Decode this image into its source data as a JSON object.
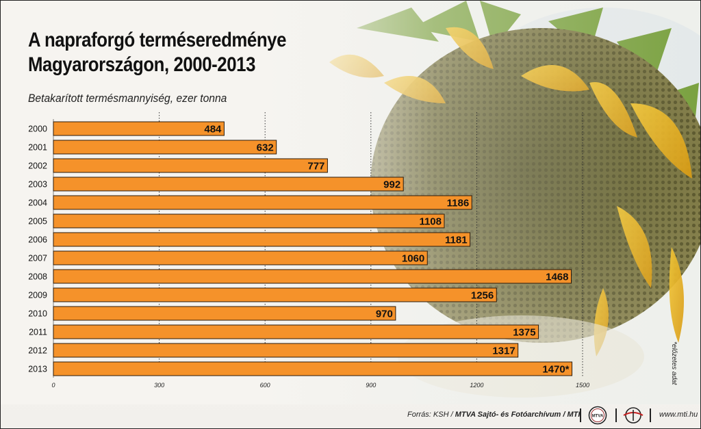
{
  "title_line1": "A napraforgó terméseredménye",
  "title_line2": "Magyarországon, 2000-2013",
  "subtitle": "Betakarított termésmannyiség, ezer tonna",
  "note": "*előzetes adat",
  "footer": {
    "source_prefix": "Forrás: KSH / ",
    "source_bold": "MTVA Sajtó- és Fotóarchívum / MTI",
    "logo_mtva": "MTVA",
    "site": "www.mti.hu"
  },
  "colors": {
    "bar": "#f5922a",
    "bar_border": "#2a1a0a",
    "text": "#111111"
  },
  "chart_data": {
    "type": "bar",
    "orientation": "horizontal",
    "title": "A napraforgó terméseredménye Magyarországon, 2000-2013",
    "subtitle": "Betakarított termésmannyiség, ezer tonna",
    "categories": [
      "2000",
      "2001",
      "2002",
      "2003",
      "2004",
      "2005",
      "2006",
      "2007",
      "2008",
      "2009",
      "2010",
      "2011",
      "2012",
      "2013"
    ],
    "values": [
      484,
      632,
      777,
      992,
      1186,
      1108,
      1181,
      1060,
      1468,
      1256,
      970,
      1375,
      1317,
      1470
    ],
    "labels": [
      "484",
      "632",
      "777",
      "992",
      "1186",
      "1108",
      "1181",
      "1060",
      "1468",
      "1256",
      "970",
      "1375",
      "1317",
      "1470*"
    ],
    "xlim": [
      0,
      1500
    ],
    "xticks": [
      0,
      300,
      600,
      900,
      1200,
      1500
    ],
    "grid": "vertical dashed at ticks"
  }
}
